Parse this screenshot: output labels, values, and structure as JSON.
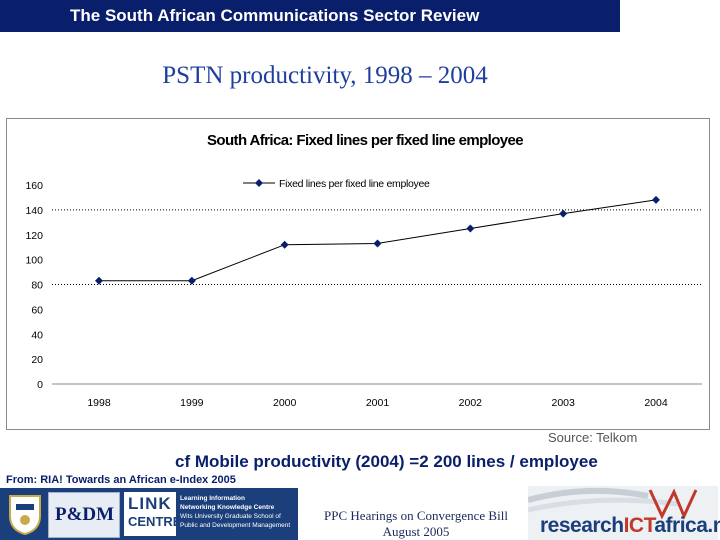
{
  "header": {
    "title": "The South African Communications Sector Review"
  },
  "slide": {
    "title": "PSTN productivity, 1998 – 2004"
  },
  "chart_data": {
    "type": "line",
    "title": "South Africa: Fixed lines per fixed line employee",
    "categories": [
      "1998",
      "1999",
      "2000",
      "2001",
      "2002",
      "2003",
      "2004"
    ],
    "series": [
      {
        "name": "Fixed lines per fixed line employee",
        "values": [
          83,
          83,
          112,
          113,
          125,
          137,
          148
        ]
      }
    ],
    "y_ticks": [
      "0",
      "20",
      "40",
      "60",
      "80",
      "100",
      "120",
      "140",
      "160"
    ],
    "ylim": [
      0,
      160
    ],
    "grid": "horizontal dotted at 80 and 140",
    "legend": "top-center",
    "line_color": "#000000",
    "marker": "diamond"
  },
  "source": "Source:  Telkom",
  "note": "cf Mobile productivity (2004) =2 200 lines / employee",
  "from": "From: RIA! Towards an African e-Index 2005",
  "footer": {
    "p_dm": "P&DM",
    "link_line1": "LINK",
    "link_line2": "CENTRE",
    "link_tag1": "Learning Information",
    "link_tag2": "Networking Knowledge Centre",
    "link_tag3": "Wits University Graduate School of",
    "link_tag4": "Public and Development Management",
    "ppc_line1": "PPC Hearings on Convergence Bill",
    "ppc_line2": "August 2005",
    "ria_research": "research",
    "ria_ict": "ICT",
    "ria_africa": "africa.net"
  }
}
